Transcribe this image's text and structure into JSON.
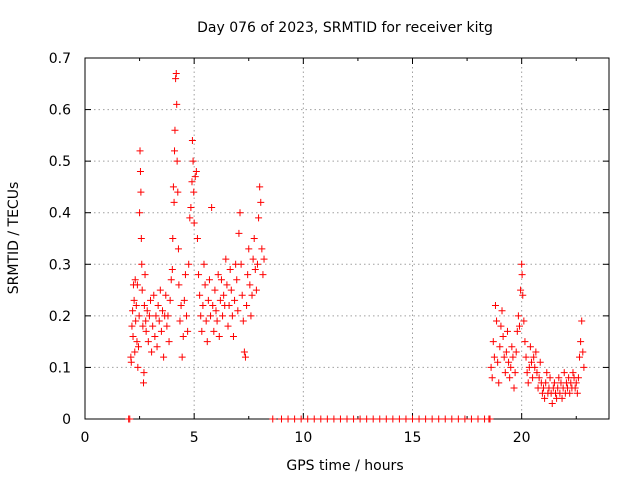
{
  "chart_data": {
    "type": "scatter",
    "title": "Day 076 of 2023, SRMTID for receiver kitg",
    "xlabel": "GPS time / hours",
    "ylabel": "SRMTID / TECUs",
    "xlim": [
      0,
      24
    ],
    "ylim": [
      0,
      0.7
    ],
    "xticks": [
      0,
      5,
      10,
      15,
      20
    ],
    "yticks": [
      0,
      0.1,
      0.2,
      0.3,
      0.4,
      0.5,
      0.6,
      0.7
    ],
    "xtick_labels": [
      "0",
      "5",
      "10",
      "15",
      "20"
    ],
    "ytick_labels": [
      "0",
      "0.1",
      "0.2",
      "0.3",
      "0.4",
      "0.5",
      "0.6",
      "0.7"
    ],
    "grid": true,
    "marker": "+",
    "color": "#ff0000",
    "series": [
      {
        "name": "SRMTID",
        "points": [
          [
            2.0,
            0.0
          ],
          [
            2.05,
            0.0
          ],
          [
            2.1,
            0.12
          ],
          [
            2.12,
            0.11
          ],
          [
            2.15,
            0.18
          ],
          [
            2.18,
            0.21
          ],
          [
            2.2,
            0.16
          ],
          [
            2.22,
            0.26
          ],
          [
            2.25,
            0.23
          ],
          [
            2.28,
            0.13
          ],
          [
            2.3,
            0.27
          ],
          [
            2.32,
            0.19
          ],
          [
            2.35,
            0.22
          ],
          [
            2.38,
            0.15
          ],
          [
            2.4,
            0.26
          ],
          [
            2.42,
            0.1
          ],
          [
            2.45,
            0.14
          ],
          [
            2.48,
            0.2
          ],
          [
            2.5,
            0.4
          ],
          [
            2.52,
            0.52
          ],
          [
            2.54,
            0.48
          ],
          [
            2.56,
            0.44
          ],
          [
            2.58,
            0.35
          ],
          [
            2.6,
            0.3
          ],
          [
            2.62,
            0.25
          ],
          [
            2.65,
            0.18
          ],
          [
            2.68,
            0.07
          ],
          [
            2.7,
            0.09
          ],
          [
            2.72,
            0.22
          ],
          [
            2.75,
            0.28
          ],
          [
            2.78,
            0.19
          ],
          [
            2.8,
            0.17
          ],
          [
            2.85,
            0.21
          ],
          [
            2.9,
            0.15
          ],
          [
            2.95,
            0.2
          ],
          [
            3.0,
            0.23
          ],
          [
            3.05,
            0.13
          ],
          [
            3.1,
            0.18
          ],
          [
            3.15,
            0.24
          ],
          [
            3.2,
            0.16
          ],
          [
            3.25,
            0.2
          ],
          [
            3.3,
            0.14
          ],
          [
            3.35,
            0.22
          ],
          [
            3.4,
            0.19
          ],
          [
            3.45,
            0.25
          ],
          [
            3.5,
            0.17
          ],
          [
            3.55,
            0.21
          ],
          [
            3.6,
            0.12
          ],
          [
            3.65,
            0.2
          ],
          [
            3.7,
            0.24
          ],
          [
            3.75,
            0.18
          ],
          [
            3.8,
            0.2
          ],
          [
            3.85,
            0.15
          ],
          [
            3.9,
            0.23
          ],
          [
            3.95,
            0.27
          ],
          [
            4.0,
            0.29
          ],
          [
            4.02,
            0.35
          ],
          [
            4.05,
            0.45
          ],
          [
            4.08,
            0.42
          ],
          [
            4.1,
            0.52
          ],
          [
            4.12,
            0.56
          ],
          [
            4.15,
            0.66
          ],
          [
            4.18,
            0.67
          ],
          [
            4.2,
            0.61
          ],
          [
            4.22,
            0.5
          ],
          [
            4.25,
            0.44
          ],
          [
            4.28,
            0.33
          ],
          [
            4.3,
            0.26
          ],
          [
            4.35,
            0.19
          ],
          [
            4.4,
            0.22
          ],
          [
            4.45,
            0.12
          ],
          [
            4.5,
            0.16
          ],
          [
            4.55,
            0.23
          ],
          [
            4.6,
            0.28
          ],
          [
            4.65,
            0.2
          ],
          [
            4.7,
            0.17
          ],
          [
            4.75,
            0.3
          ],
          [
            4.8,
            0.39
          ],
          [
            4.85,
            0.41
          ],
          [
            4.9,
            0.46
          ],
          [
            4.92,
            0.54
          ],
          [
            4.95,
            0.5
          ],
          [
            4.98,
            0.44
          ],
          [
            5.0,
            0.38
          ],
          [
            5.05,
            0.47
          ],
          [
            5.1,
            0.48
          ],
          [
            5.15,
            0.35
          ],
          [
            5.2,
            0.28
          ],
          [
            5.25,
            0.24
          ],
          [
            5.3,
            0.2
          ],
          [
            5.35,
            0.17
          ],
          [
            5.4,
            0.22
          ],
          [
            5.45,
            0.3
          ],
          [
            5.5,
            0.26
          ],
          [
            5.55,
            0.19
          ],
          [
            5.6,
            0.15
          ],
          [
            5.65,
            0.23
          ],
          [
            5.7,
            0.27
          ],
          [
            5.75,
            0.2
          ],
          [
            5.8,
            0.41
          ],
          [
            5.85,
            0.22
          ],
          [
            5.9,
            0.17
          ],
          [
            5.95,
            0.25
          ],
          [
            6.0,
            0.21
          ],
          [
            6.05,
            0.19
          ],
          [
            6.1,
            0.28
          ],
          [
            6.15,
            0.16
          ],
          [
            6.2,
            0.23
          ],
          [
            6.25,
            0.27
          ],
          [
            6.3,
            0.2
          ],
          [
            6.35,
            0.24
          ],
          [
            6.4,
            0.22
          ],
          [
            6.45,
            0.31
          ],
          [
            6.5,
            0.26
          ],
          [
            6.55,
            0.18
          ],
          [
            6.6,
            0.22
          ],
          [
            6.65,
            0.29
          ],
          [
            6.7,
            0.25
          ],
          [
            6.75,
            0.2
          ],
          [
            6.8,
            0.16
          ],
          [
            6.85,
            0.23
          ],
          [
            6.9,
            0.3
          ],
          [
            6.95,
            0.27
          ],
          [
            7.0,
            0.21
          ],
          [
            7.05,
            0.36
          ],
          [
            7.1,
            0.4
          ],
          [
            7.15,
            0.3
          ],
          [
            7.2,
            0.24
          ],
          [
            7.25,
            0.19
          ],
          [
            7.3,
            0.13
          ],
          [
            7.35,
            0.12
          ],
          [
            7.4,
            0.22
          ],
          [
            7.45,
            0.28
          ],
          [
            7.5,
            0.33
          ],
          [
            7.55,
            0.26
          ],
          [
            7.6,
            0.2
          ],
          [
            7.65,
            0.24
          ],
          [
            7.7,
            0.31
          ],
          [
            7.75,
            0.35
          ],
          [
            7.8,
            0.29
          ],
          [
            7.85,
            0.25
          ],
          [
            7.9,
            0.3
          ],
          [
            7.95,
            0.39
          ],
          [
            8.0,
            0.45
          ],
          [
            8.05,
            0.42
          ],
          [
            8.1,
            0.33
          ],
          [
            8.15,
            0.28
          ],
          [
            8.2,
            0.31
          ],
          [
            8.6,
            0.0
          ],
          [
            9.0,
            0.0
          ],
          [
            9.3,
            0.0
          ],
          [
            9.6,
            0.0
          ],
          [
            9.9,
            0.0
          ],
          [
            10.2,
            0.0
          ],
          [
            10.5,
            0.0
          ],
          [
            10.8,
            0.0
          ],
          [
            11.1,
            0.0
          ],
          [
            11.4,
            0.0
          ],
          [
            11.7,
            0.0
          ],
          [
            12.0,
            0.0
          ],
          [
            12.3,
            0.0
          ],
          [
            12.6,
            0.0
          ],
          [
            12.9,
            0.0
          ],
          [
            13.2,
            0.0
          ],
          [
            13.5,
            0.0
          ],
          [
            13.8,
            0.0
          ],
          [
            14.1,
            0.0
          ],
          [
            14.4,
            0.0
          ],
          [
            14.7,
            0.0
          ],
          [
            15.0,
            0.0
          ],
          [
            15.3,
            0.0
          ],
          [
            15.6,
            0.0
          ],
          [
            15.9,
            0.0
          ],
          [
            16.2,
            0.0
          ],
          [
            16.5,
            0.0
          ],
          [
            16.8,
            0.0
          ],
          [
            17.1,
            0.0
          ],
          [
            17.4,
            0.0
          ],
          [
            17.7,
            0.0
          ],
          [
            18.0,
            0.0
          ],
          [
            18.3,
            0.0
          ],
          [
            18.5,
            0.0
          ],
          [
            18.55,
            0.0
          ],
          [
            18.6,
            0.1
          ],
          [
            18.65,
            0.08
          ],
          [
            18.7,
            0.15
          ],
          [
            18.75,
            0.12
          ],
          [
            18.8,
            0.22
          ],
          [
            18.85,
            0.19
          ],
          [
            18.9,
            0.11
          ],
          [
            18.95,
            0.07
          ],
          [
            19.0,
            0.14
          ],
          [
            19.05,
            0.18
          ],
          [
            19.1,
            0.21
          ],
          [
            19.15,
            0.16
          ],
          [
            19.2,
            0.12
          ],
          [
            19.25,
            0.09
          ],
          [
            19.3,
            0.13
          ],
          [
            19.35,
            0.17
          ],
          [
            19.4,
            0.11
          ],
          [
            19.45,
            0.08
          ],
          [
            19.5,
            0.1
          ],
          [
            19.55,
            0.14
          ],
          [
            19.6,
            0.12
          ],
          [
            19.65,
            0.06
          ],
          [
            19.7,
            0.09
          ],
          [
            19.75,
            0.13
          ],
          [
            19.8,
            0.17
          ],
          [
            19.85,
            0.2
          ],
          [
            19.9,
            0.18
          ],
          [
            19.95,
            0.25
          ],
          [
            20.0,
            0.3
          ],
          [
            20.02,
            0.28
          ],
          [
            20.05,
            0.24
          ],
          [
            20.1,
            0.19
          ],
          [
            20.15,
            0.15
          ],
          [
            20.2,
            0.12
          ],
          [
            20.25,
            0.09
          ],
          [
            20.3,
            0.07
          ],
          [
            20.35,
            0.1
          ],
          [
            20.4,
            0.14
          ],
          [
            20.45,
            0.11
          ],
          [
            20.5,
            0.08
          ],
          [
            20.55,
            0.12
          ],
          [
            20.6,
            0.1
          ],
          [
            20.65,
            0.13
          ],
          [
            20.7,
            0.09
          ],
          [
            20.75,
            0.06
          ],
          [
            20.8,
            0.08
          ],
          [
            20.85,
            0.11
          ],
          [
            20.9,
            0.07
          ],
          [
            20.95,
            0.05
          ],
          [
            21.0,
            0.06
          ],
          [
            21.05,
            0.04
          ],
          [
            21.1,
            0.07
          ],
          [
            21.15,
            0.09
          ],
          [
            21.2,
            0.05
          ],
          [
            21.25,
            0.06
          ],
          [
            21.3,
            0.08
          ],
          [
            21.35,
            0.05
          ],
          [
            21.4,
            0.03
          ],
          [
            21.45,
            0.06
          ],
          [
            21.5,
            0.07
          ],
          [
            21.55,
            0.05
          ],
          [
            21.6,
            0.04
          ],
          [
            21.65,
            0.06
          ],
          [
            21.7,
            0.08
          ],
          [
            21.75,
            0.05
          ],
          [
            21.8,
            0.07
          ],
          [
            21.85,
            0.04
          ],
          [
            21.9,
            0.06
          ],
          [
            21.95,
            0.09
          ],
          [
            22.0,
            0.05
          ],
          [
            22.05,
            0.07
          ],
          [
            22.1,
            0.06
          ],
          [
            22.15,
            0.08
          ],
          [
            22.2,
            0.05
          ],
          [
            22.25,
            0.07
          ],
          [
            22.3,
            0.06
          ],
          [
            22.35,
            0.09
          ],
          [
            22.4,
            0.08
          ],
          [
            22.45,
            0.06
          ],
          [
            22.5,
            0.07
          ],
          [
            22.55,
            0.05
          ],
          [
            22.6,
            0.08
          ],
          [
            22.65,
            0.12
          ],
          [
            22.7,
            0.15
          ],
          [
            22.75,
            0.19
          ],
          [
            22.8,
            0.13
          ],
          [
            22.85,
            0.1
          ]
        ]
      }
    ]
  }
}
